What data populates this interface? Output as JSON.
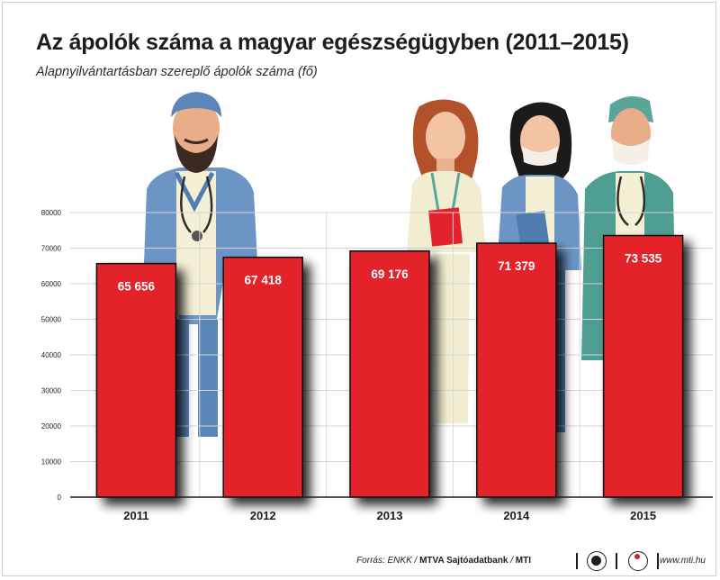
{
  "header": {
    "title": "Az ápolók száma a magyar egészségügyben (2011–2015)",
    "subtitle": "Alapnyilvántartásban szereplő ápolók száma (fő)"
  },
  "chart_data": {
    "type": "bar",
    "title": "Az ápolók száma a magyar egészségügyben (2011–2015)",
    "subtitle": "Alapnyilvántartásban szereplő ápolók száma (fő)",
    "xlabel": "",
    "ylabel": "",
    "categories": [
      "2011",
      "2012",
      "2013",
      "2014",
      "2015"
    ],
    "values": [
      65656,
      67418,
      69176,
      71379,
      73535
    ],
    "value_labels": [
      "65 656",
      "67 418",
      "69 176",
      "71 379",
      "73 535"
    ],
    "ylim": [
      0,
      80000
    ],
    "yticks": [
      0,
      10000,
      20000,
      30000,
      40000,
      50000,
      60000,
      70000,
      80000
    ],
    "ytick_labels": [
      "0",
      "10000",
      "20000",
      "30000",
      "40000",
      "50000",
      "60000",
      "70000",
      "80000"
    ],
    "grid": true,
    "legend": "none",
    "bar_color": "#e3222b"
  },
  "illustration": {
    "figures": [
      "male-nurse-beard-icon",
      "female-nurse-clipboard-icon",
      "female-nurse-mask-icon",
      "male-nurse-mask-icon"
    ]
  },
  "footer": {
    "source_prefix": "Forrás: ENKK / ",
    "source_bold": "MTVA Sajtóadatbank",
    "source_sep": " / ",
    "source_mti": "MTI",
    "logos": [
      "mtva-logo-icon",
      "mti-logo-icon"
    ],
    "site": "www.mti.hu"
  }
}
